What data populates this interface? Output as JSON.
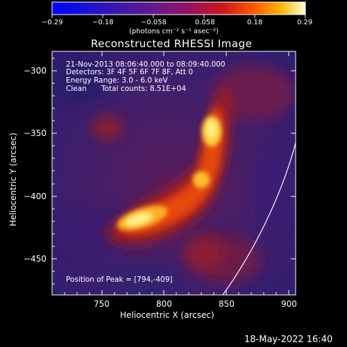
{
  "colorbar": {
    "tick_labels": [
      "−0.29",
      "−0.18",
      "−0.058",
      "0.058",
      "0.18",
      "0.29"
    ],
    "units_label": "(photons cm⁻² s⁻¹ asec⁻²)"
  },
  "plot": {
    "title": "Reconstructed RHESSI Image",
    "time_range": "21-Nov-2013 08:06:40.000 to 08:09:40.000",
    "detectors": "Detectors: 3F 4F 5F 6F 7F 8F, Att 0",
    "energy_range": "Energy Range: 3.0 - 6.0 keV",
    "clean_label": "Clean",
    "total_counts": "Total counts: 8.51E+04",
    "peak_position": "Position of Peak = [794,-409]",
    "x_axis_label": "Heliocentric X (arcsec)",
    "y_axis_label": "Heliocentric Y (arcsec)",
    "x_tick_labels": [
      "750",
      "800",
      "850",
      "900"
    ],
    "y_tick_labels": [
      "−300",
      "−350",
      "−400",
      "−450"
    ]
  },
  "footer": {
    "timestamp": "18-May-2022 16:40"
  },
  "colors": {
    "background": "#000000",
    "low": "#3a1f6e",
    "mid": "#a8201a",
    "high": "#ffe060"
  }
}
